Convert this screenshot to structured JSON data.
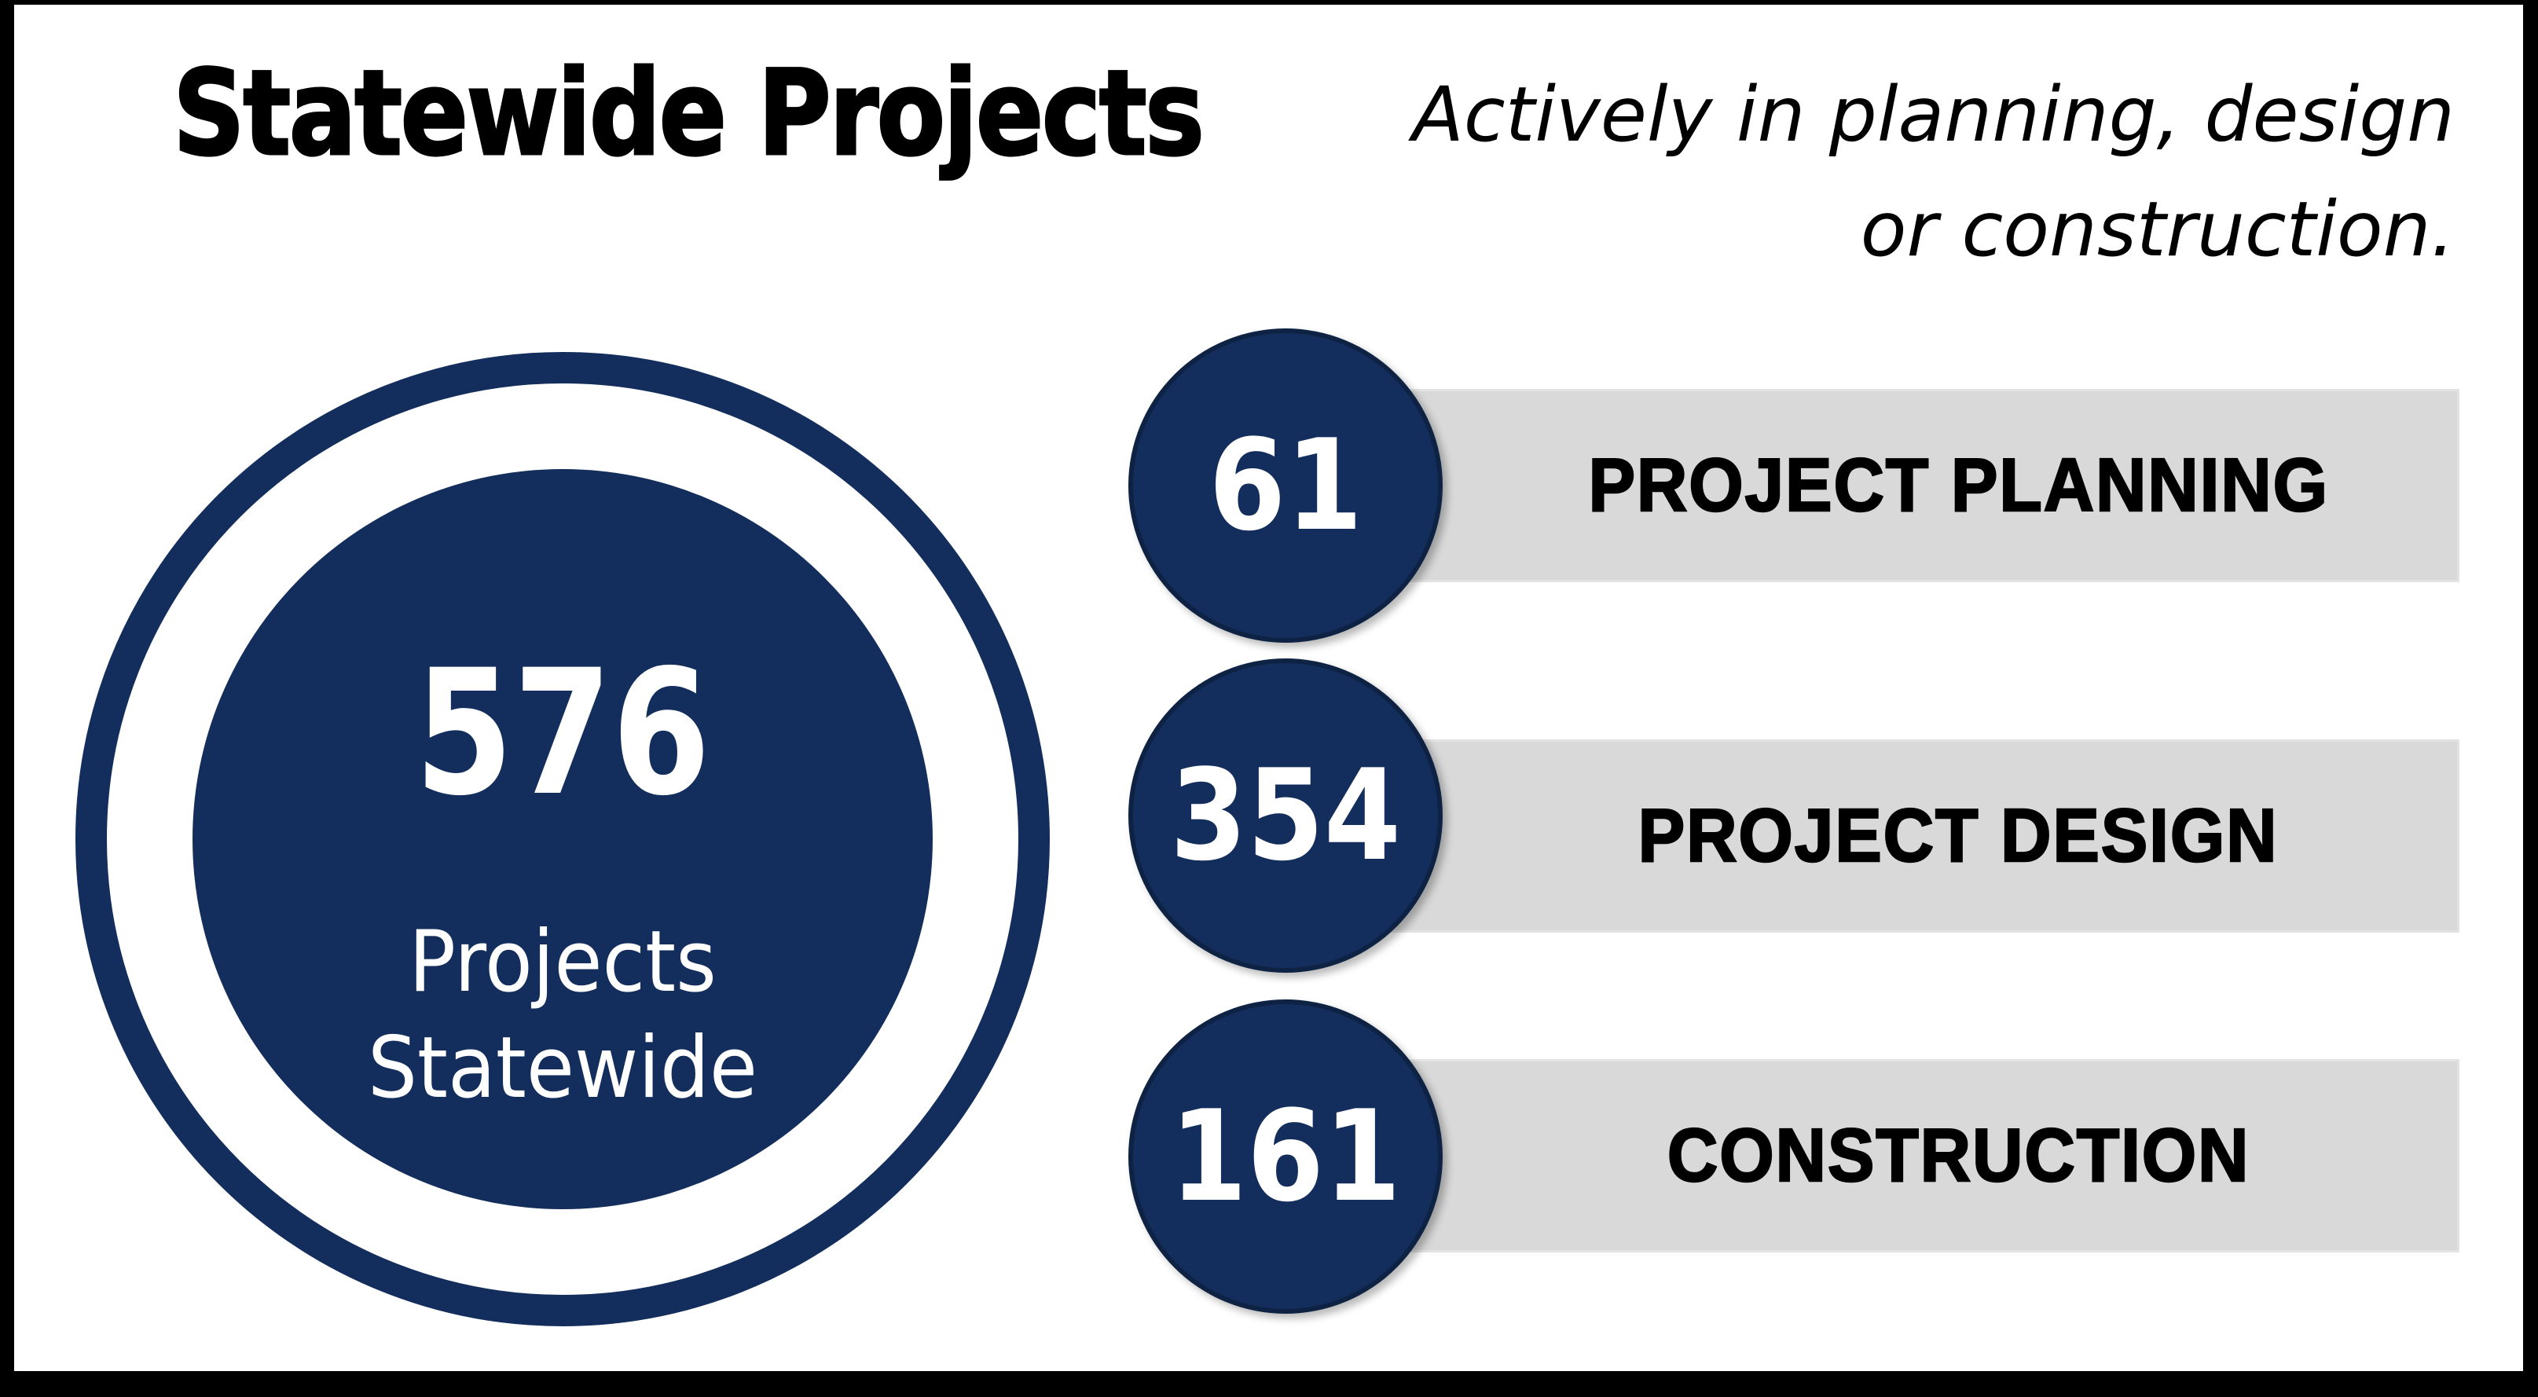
{
  "title": "Statewide Projects",
  "subtitle_line1": "Actively in planning, design",
  "subtitle_line2": "or construction.",
  "summary_circle": {
    "value": "576",
    "label_line1": "Projects",
    "label_line2": "Statewide"
  },
  "stages": [
    {
      "value": "61",
      "label": "PROJECT PLANNING"
    },
    {
      "value": "354",
      "label": "PROJECT DESIGN"
    },
    {
      "value": "161",
      "label": "CONSTRUCTION"
    }
  ],
  "colors": {
    "navy": "#132e5c",
    "bar_gray": "#d9d9d9",
    "text_black": "#000000",
    "white": "#ffffff"
  },
  "chart_data": {
    "type": "bar",
    "categories": [
      "PROJECT PLANNING",
      "PROJECT DESIGN",
      "CONSTRUCTION"
    ],
    "values": [
      61,
      354,
      161
    ],
    "title": "Statewide Projects",
    "subtitle": "Actively in planning, design or construction.",
    "total": 576,
    "total_label": "Projects Statewide",
    "legend_position": "none",
    "grid": false
  }
}
